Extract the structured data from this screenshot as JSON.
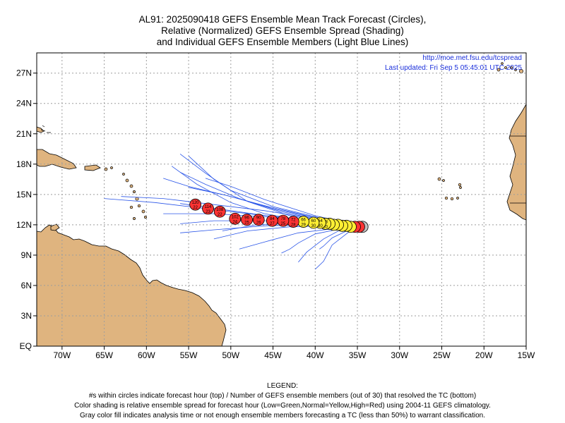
{
  "title": {
    "line1": "AL91: 2025090418 GEFS Ensemble Mean Track Forecast (Circles),",
    "line2": "Relative (Normalized) GEFS Ensemble Spread (Shading)",
    "line3": "and Individual GEFS Ensemble Members (Light Blue Lines)"
  },
  "credits": {
    "url": "http://moe.met.fsu.edu/tcspread",
    "updated": "Last updated: Fri Sep  5 05:45:01 UTC 2025"
  },
  "axes": {
    "lat_labels": [
      "27N",
      "24N",
      "21N",
      "18N",
      "15N",
      "12N",
      "9N",
      "6N",
      "3N",
      "EQ"
    ],
    "lat_values": [
      27,
      24,
      21,
      18,
      15,
      12,
      9,
      6,
      3,
      0
    ],
    "lon_labels": [
      "70W",
      "65W",
      "60W",
      "55W",
      "50W",
      "45W",
      "40W",
      "35W",
      "30W",
      "25W",
      "20W",
      "15W"
    ],
    "lon_values": [
      -70,
      -65,
      -60,
      -55,
      -50,
      -45,
      -40,
      -35,
      -30,
      -25,
      -20,
      -15
    ],
    "lon_range": [
      -73,
      -15
    ],
    "lat_range": [
      0,
      29
    ]
  },
  "colors": {
    "land": "#dfb47f",
    "member_track": "#2a55e8",
    "high_spread": "#ff3333",
    "normal_spread": "#ffee33",
    "gray": "#c0c0c0",
    "grid": "#9e9e9e"
  },
  "mean_track": [
    {
      "lon": -34.4,
      "lat": 11.8,
      "hour": "",
      "members": "",
      "spread": "gray"
    },
    {
      "lon": -34.8,
      "lat": 11.8,
      "hour": "",
      "members": "",
      "spread": "high"
    },
    {
      "lon": -35.3,
      "lat": 11.8,
      "hour": "",
      "members": "",
      "spread": "high"
    },
    {
      "lon": -35.8,
      "lat": 11.8,
      "hour": "",
      "members": "",
      "spread": "normal"
    },
    {
      "lon": -36.3,
      "lat": 11.9,
      "hour": "",
      "members": "",
      "spread": "normal"
    },
    {
      "lon": -36.8,
      "lat": 11.9,
      "hour": "",
      "members": "",
      "spread": "normal"
    },
    {
      "lon": -37.3,
      "lat": 12.0,
      "hour": "",
      "members": "",
      "spread": "normal"
    },
    {
      "lon": -37.8,
      "lat": 12.0,
      "hour": "",
      "members": "",
      "spread": "normal"
    },
    {
      "lon": -38.3,
      "lat": 12.1,
      "hour": "",
      "members": "",
      "spread": "normal"
    },
    {
      "lon": -38.8,
      "lat": 12.1,
      "hour": "48",
      "members": "30",
      "spread": "normal"
    },
    {
      "lon": -39.4,
      "lat": 12.2,
      "hour": "54",
      "members": "30",
      "spread": "normal"
    },
    {
      "lon": -40.2,
      "lat": 12.2,
      "hour": "60",
      "members": "30",
      "spread": "normal"
    },
    {
      "lon": -41.4,
      "lat": 12.3,
      "hour": "66",
      "members": "29",
      "spread": "normal"
    },
    {
      "lon": -42.6,
      "lat": 12.3,
      "hour": "72",
      "members": "28",
      "spread": "high"
    },
    {
      "lon": -43.8,
      "lat": 12.4,
      "hour": "78",
      "members": "25",
      "spread": "high"
    },
    {
      "lon": -45.1,
      "lat": 12.4,
      "hour": "84",
      "members": "27",
      "spread": "high"
    },
    {
      "lon": -46.7,
      "lat": 12.5,
      "hour": "90",
      "members": "26",
      "spread": "high"
    },
    {
      "lon": -48.1,
      "lat": 12.5,
      "hour": "96",
      "members": "25",
      "spread": "high"
    },
    {
      "lon": -49.5,
      "lat": 12.6,
      "hour": "102",
      "members": "24",
      "spread": "high"
    },
    {
      "lon": -51.3,
      "lat": 13.3,
      "hour": "108",
      "members": "22",
      "spread": "high"
    },
    {
      "lon": -52.7,
      "lat": 13.6,
      "hour": "114",
      "members": "23",
      "spread": "high"
    },
    {
      "lon": -54.2,
      "lat": 14.0,
      "hour": "120",
      "members": "22",
      "spread": "high"
    }
  ],
  "members": [
    [
      [
        -34,
        11.8
      ],
      [
        -38,
        12.1
      ],
      [
        -42,
        12.5
      ],
      [
        -46,
        13.1
      ],
      [
        -50,
        14.2
      ],
      [
        -54,
        16.0
      ],
      [
        -57,
        17.8
      ]
    ],
    [
      [
        -34,
        11.8
      ],
      [
        -38,
        12.2
      ],
      [
        -43,
        12.9
      ],
      [
        -48,
        14.3
      ],
      [
        -52,
        16.5
      ],
      [
        -55,
        18.8
      ]
    ],
    [
      [
        -34,
        11.8
      ],
      [
        -39,
        12.4
      ],
      [
        -44,
        13.3
      ],
      [
        -49,
        14.6
      ],
      [
        -53,
        16.0
      ],
      [
        -56,
        17.2
      ]
    ],
    [
      [
        -34,
        11.8
      ],
      [
        -39,
        12.5
      ],
      [
        -45,
        13.6
      ],
      [
        -50,
        14.8
      ],
      [
        -55,
        15.8
      ],
      [
        -58,
        16.6
      ]
    ],
    [
      [
        -34,
        11.8
      ],
      [
        -40,
        12.7
      ],
      [
        -46,
        13.9
      ],
      [
        -51,
        15.0
      ],
      [
        -55,
        15.7
      ]
    ],
    [
      [
        -34,
        11.8
      ],
      [
        -40,
        12.6
      ],
      [
        -46,
        13.4
      ],
      [
        -52,
        14.0
      ],
      [
        -58,
        14.6
      ],
      [
        -63,
        14.8
      ]
    ],
    [
      [
        -34,
        11.8
      ],
      [
        -40,
        12.4
      ],
      [
        -47,
        13.0
      ],
      [
        -53,
        13.6
      ],
      [
        -59,
        14.2
      ],
      [
        -65,
        14.6
      ]
    ],
    [
      [
        -34,
        11.8
      ],
      [
        -40,
        12.3
      ],
      [
        -46,
        12.8
      ],
      [
        -52,
        13.1
      ],
      [
        -58,
        13.1
      ]
    ],
    [
      [
        -34,
        11.8
      ],
      [
        -40,
        12.2
      ],
      [
        -46,
        12.4
      ],
      [
        -52,
        12.4
      ],
      [
        -56,
        12.1
      ]
    ],
    [
      [
        -34,
        11.8
      ],
      [
        -40,
        12.0
      ],
      [
        -46,
        11.9
      ],
      [
        -52,
        11.5
      ],
      [
        -56,
        11.2
      ]
    ],
    [
      [
        -34,
        11.8
      ],
      [
        -38,
        11.9
      ],
      [
        -43,
        11.8
      ],
      [
        -48,
        11.4
      ],
      [
        -52,
        10.6
      ]
    ],
    [
      [
        -34,
        11.8
      ],
      [
        -37,
        11.6
      ],
      [
        -40,
        11.1
      ],
      [
        -42,
        10.2
      ],
      [
        -43,
        9.6
      ],
      [
        -44,
        9.2
      ]
    ],
    [
      [
        -34,
        11.8
      ],
      [
        -36,
        11.5
      ],
      [
        -38,
        10.7
      ],
      [
        -39,
        9.9
      ],
      [
        -39.5,
        9.6
      ]
    ],
    [
      [
        -34,
        11.8
      ],
      [
        -36,
        11.3
      ],
      [
        -38,
        10.0
      ],
      [
        -39,
        8.4
      ],
      [
        -40,
        7.6
      ]
    ],
    [
      [
        -34,
        11.8
      ],
      [
        -37,
        11.5
      ],
      [
        -39,
        10.6
      ],
      [
        -41,
        9.3
      ],
      [
        -42,
        8.3
      ]
    ],
    [
      [
        -34,
        11.8
      ],
      [
        -38,
        11.6
      ],
      [
        -42,
        11.2
      ],
      [
        -46,
        10.3
      ],
      [
        -49,
        9.6
      ]
    ],
    [
      [
        -34,
        11.8
      ],
      [
        -39,
        12.6
      ],
      [
        -45,
        13.8
      ],
      [
        -50,
        15.4
      ],
      [
        -53,
        17.1
      ],
      [
        -56,
        19.0
      ]
    ],
    [
      [
        -34,
        11.8
      ],
      [
        -39,
        12.3
      ],
      [
        -44,
        12.7
      ],
      [
        -50,
        13.4
      ],
      [
        -56,
        14.1
      ]
    ],
    [
      [
        -34,
        11.8
      ],
      [
        -40,
        12.9
      ],
      [
        -46,
        14.5
      ],
      [
        -50,
        15.8
      ],
      [
        -53,
        16.6
      ]
    ],
    [
      [
        -34,
        11.8
      ],
      [
        -38,
        12.1
      ],
      [
        -42,
        12.2
      ],
      [
        -47,
        12.0
      ],
      [
        -51,
        11.4
      ]
    ]
  ]
}
